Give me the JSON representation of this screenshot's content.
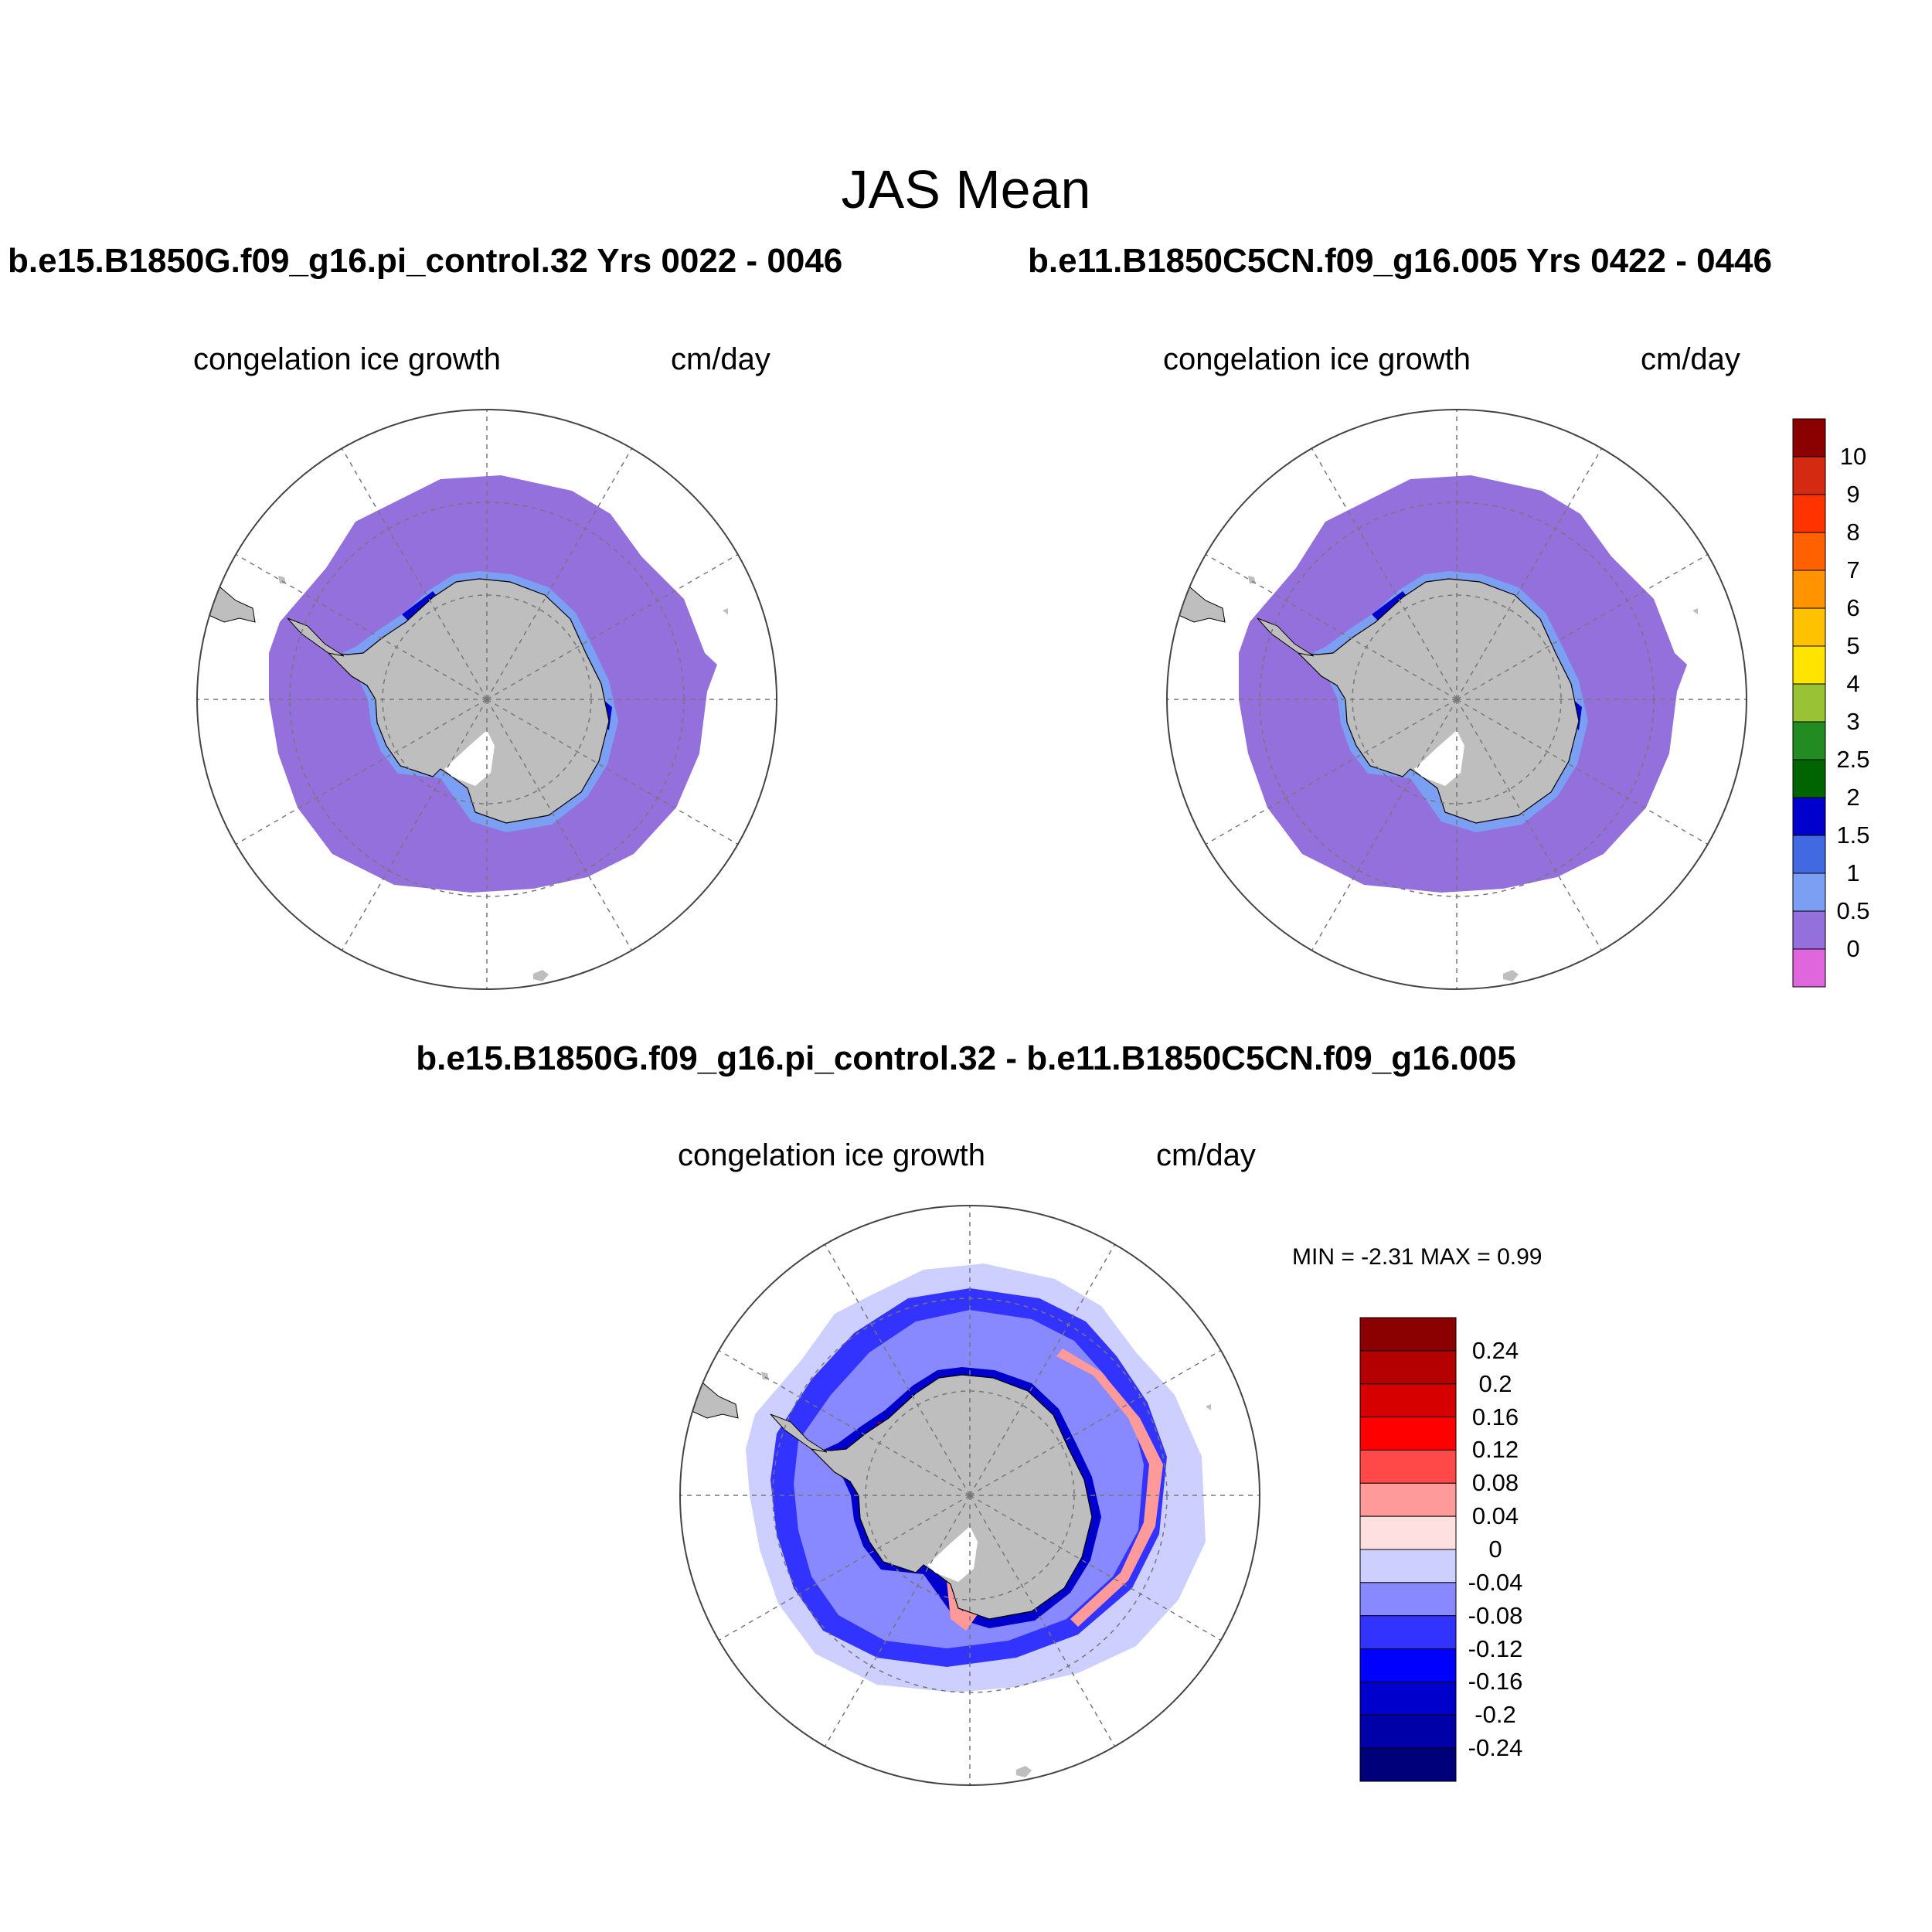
{
  "figure": {
    "title": "JAS Mean",
    "panels": [
      {
        "case_title": "b.e15.B1850G.f09_g16.pi_control.32  Yrs 0022 - 0046",
        "variable": "congelation ice growth",
        "units": "cm/day",
        "type": "model"
      },
      {
        "case_title": "b.e11.B1850C5CN.f09_g16.005  Yrs 0422 - 0446",
        "variable": "congelation ice growth",
        "units": "cm/day",
        "type": "model"
      },
      {
        "case_title": "b.e15.B1850G.f09_g16.pi_control.32 - b.e11.B1850C5CN.f09_g16.005",
        "variable": "congelation ice growth",
        "units": "cm/day",
        "type": "difference",
        "min_label": "MIN =  -2.31 MAX =   0.99"
      }
    ]
  },
  "colorbars": {
    "model": {
      "labels": [
        "10",
        "9",
        "8",
        "7",
        "6",
        "5",
        "4",
        "3",
        "2.5",
        "2",
        "1.5",
        "1",
        "0.5",
        "0"
      ],
      "colors": [
        "#8b0000",
        "#d42a12",
        "#ff3300",
        "#ff6000",
        "#ff9300",
        "#ffc100",
        "#ffe400",
        "#9ac235",
        "#228b22",
        "#006400",
        "#0000cd",
        "#4169e1",
        "#7b9ff2",
        "#9370db",
        "#e066dd"
      ]
    },
    "difference": {
      "labels": [
        "0.24",
        "0.2",
        "0.16",
        "0.12",
        "0.08",
        "0.04",
        "0",
        "-0.04",
        "-0.08",
        "-0.12",
        "-0.16",
        "-0.2",
        "-0.24"
      ],
      "colors": [
        "#8b0000",
        "#b40000",
        "#d60000",
        "#ff0000",
        "#ff4848",
        "#ff9a9a",
        "#ffe0e0",
        "#cccfff",
        "#8888ff",
        "#3333ff",
        "#0000ff",
        "#0000cc",
        "#0000a8",
        "#00007a"
      ]
    }
  },
  "map_colors": {
    "land": "#bebebe",
    "ice_base": "#9370db",
    "ice_coast": "#7b9ff2",
    "ice_coast_strong": "#0000cd",
    "diff_outer": "#cccfff",
    "diff_mid": "#3333ff",
    "diff_strong": "#0000cc",
    "diff_pos": "#ff9a9a",
    "diff_pos_strong": "#b40000"
  }
}
